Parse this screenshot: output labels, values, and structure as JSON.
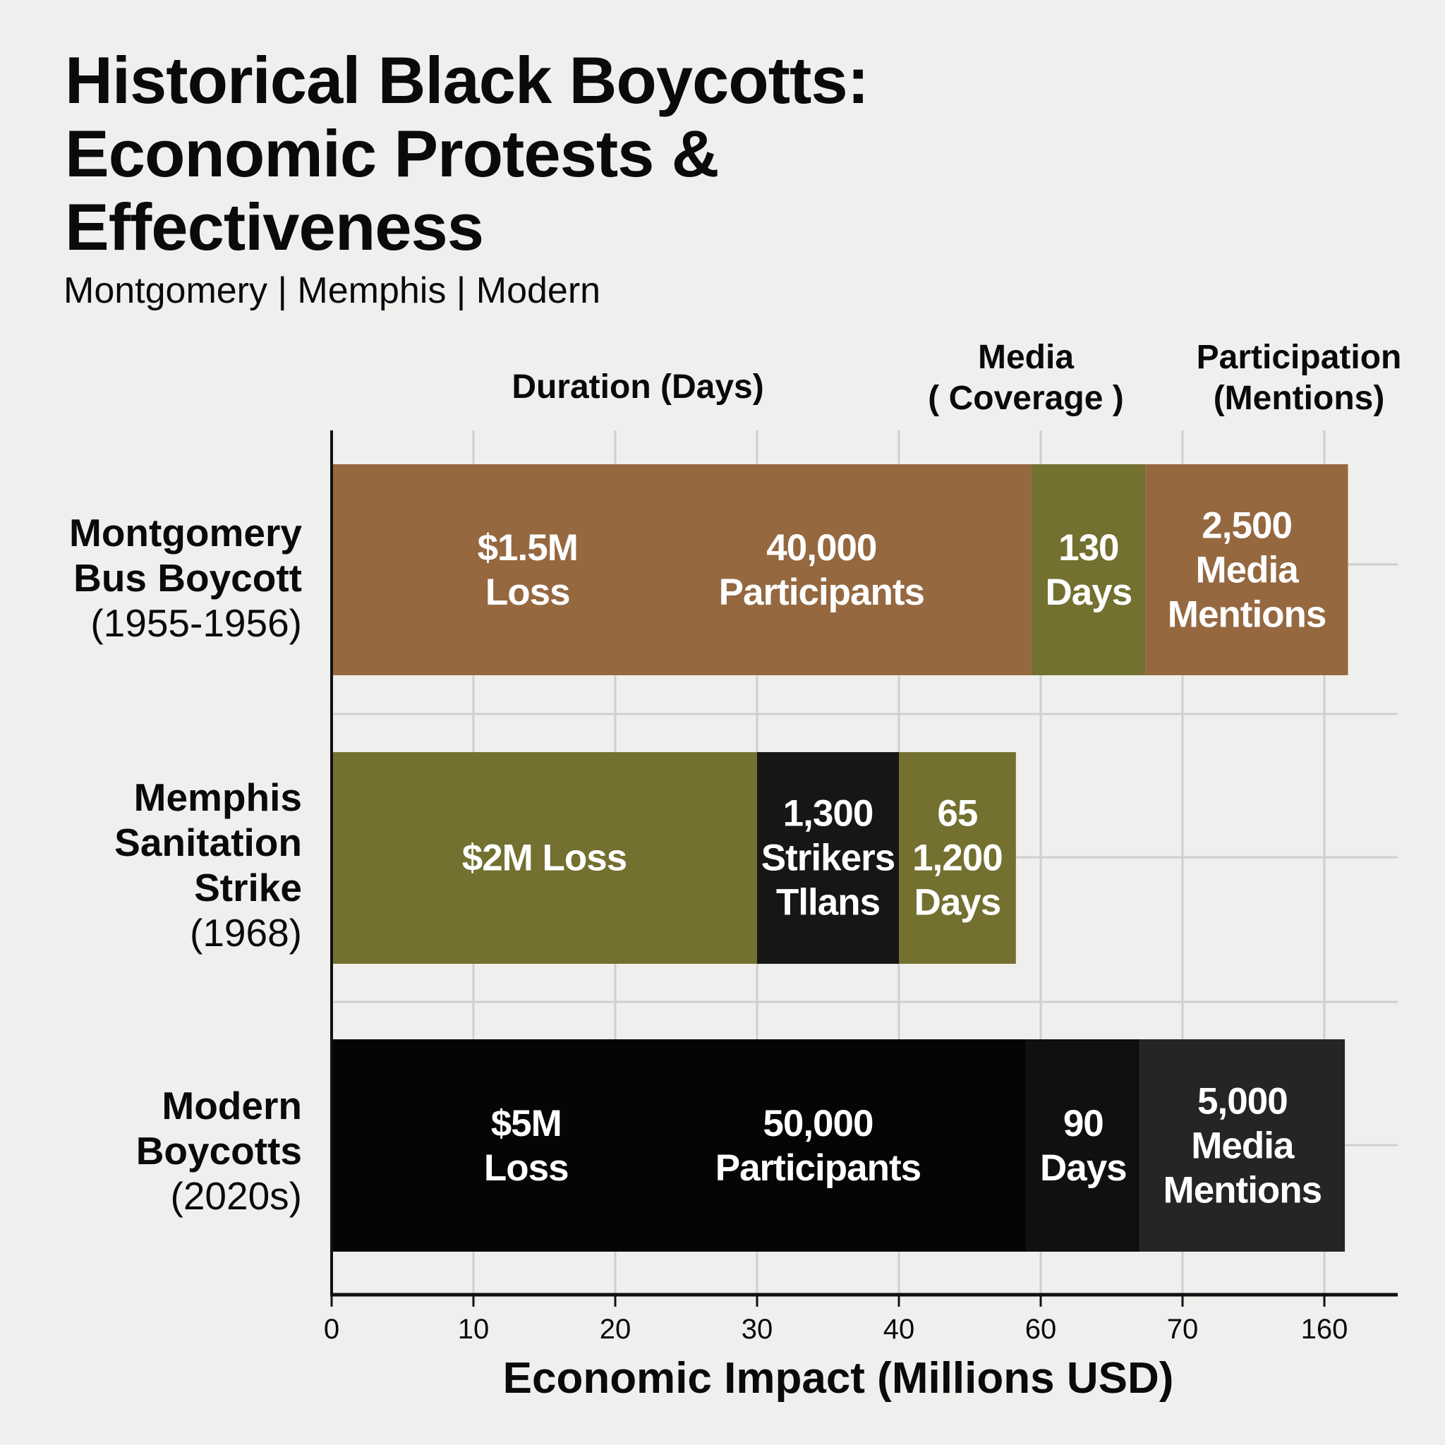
{
  "title_lines": [
    "Historical Black Boycotts:",
    "Economic Protests &",
    "Effectiveness"
  ],
  "subtitle": "Montgomery | Memphis | Modern",
  "column_headers": [
    {
      "lines": [
        "Duration (Days)"
      ]
    },
    {
      "lines": [
        "Media",
        "( Coverage )"
      ]
    },
    {
      "lines": [
        "Participation",
        "(Mentions)"
      ]
    }
  ],
  "chart_data": {
    "type": "bar",
    "orientation": "horizontal",
    "stacked": true,
    "xlabel": "Economic Impact (Millions USD)",
    "x_ticks": [
      "0",
      "10",
      "20",
      "30",
      "40",
      "60",
      "70",
      "160"
    ],
    "grid": true,
    "categories": [
      {
        "lines": [
          "Montgomery",
          "Bus Boycott",
          "(1955-1956)"
        ],
        "bold_lines": 2
      },
      {
        "lines": [
          "Memphis",
          "Sanitation",
          "Strike",
          "(1968)"
        ],
        "bold_lines": 3
      },
      {
        "lines": [
          "Modern",
          "Boycotts",
          "(2020s)"
        ],
        "bold_lines": 2
      }
    ],
    "bars": [
      {
        "segments": [
          {
            "start": 0,
            "end": 58.7,
            "color": "#956840",
            "labels": [
              {
                "lines": [
                  "$1.5M",
                  "Loss"
                ]
              },
              {
                "lines": [
                  "40,000",
                  "Participants"
                ]
              }
            ]
          },
          {
            "start": 58.7,
            "end": 67.4,
            "color": "#737030",
            "labels": [
              {
                "lines": [
                  "130",
                  "Days"
                ]
              }
            ]
          },
          {
            "start": 67.4,
            "end": 175,
            "color": "#956840",
            "labels": [
              {
                "lines": [
                  "2,500",
                  "Media",
                  "Mentions"
                ]
              }
            ]
          }
        ]
      },
      {
        "segments": [
          {
            "start": 0,
            "end": 30,
            "color": "#737030",
            "labels": [
              {
                "lines": [
                  "$2M Loss"
                ]
              }
            ]
          },
          {
            "start": 30,
            "end": 40,
            "color": "#161616",
            "labels": [
              {
                "lines": [
                  "1,300",
                  "Strikers",
                  "Tllans"
                ]
              }
            ]
          },
          {
            "start": 40,
            "end": 56.5,
            "color": "#737030",
            "labels": [
              {
                "lines": [
                  "65",
                  "1,200",
                  "Days"
                ]
              }
            ]
          }
        ]
      },
      {
        "segments": [
          {
            "start": 0,
            "end": 58,
            "color": "#050505",
            "labels": [
              {
                "lines": [
                  "$5M",
                  "Loss"
                ]
              },
              {
                "lines": [
                  "50,000",
                  "Participants"
                ]
              }
            ]
          },
          {
            "start": 58,
            "end": 67,
            "color": "#101010",
            "labels": [
              {
                "lines": [
                  "90",
                  "Days"
                ]
              }
            ]
          },
          {
            "start": 67,
            "end": 173,
            "color": "#252525",
            "labels": [
              {
                "lines": [
                  "5,000",
                  "Media",
                  "Mentions"
                ]
              }
            ]
          }
        ]
      }
    ]
  }
}
